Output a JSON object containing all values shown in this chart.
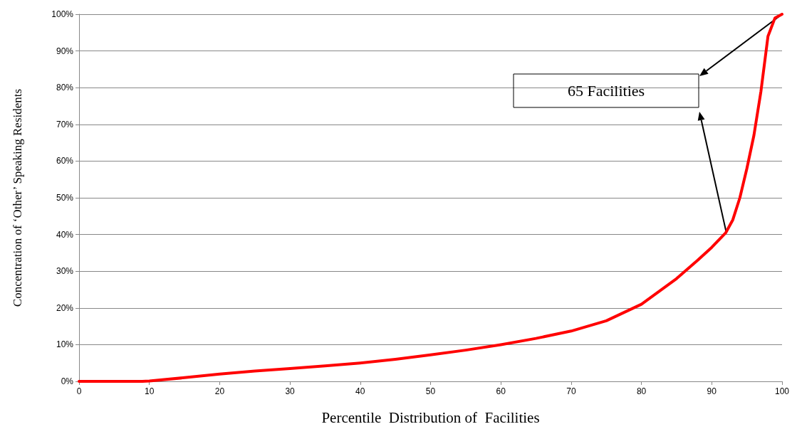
{
  "chart_data": {
    "type": "line",
    "xlabel": "Percentile  Distribution of  Facilities",
    "ylabel": "Concentration of ‘Other’ Speaking Residents",
    "x": [
      0,
      5,
      9,
      10,
      15,
      20,
      25,
      30,
      35,
      40,
      45,
      50,
      55,
      60,
      65,
      70,
      75,
      80,
      85,
      88,
      90,
      92,
      93,
      94,
      95,
      96,
      97,
      98,
      99,
      100
    ],
    "series": [
      {
        "color": "#ff0000",
        "values": [
          0,
          0,
          0,
          0.1,
          1,
          2,
          2.8,
          3.5,
          4.2,
          5,
          6,
          7.2,
          8.5,
          10,
          11.7,
          13.7,
          16.5,
          21,
          28,
          33,
          36.5,
          40.5,
          44,
          50,
          58,
          67,
          79,
          94,
          99,
          100
        ]
      }
    ],
    "xlim": [
      0,
      100
    ],
    "xticks": [
      0,
      10,
      20,
      30,
      40,
      50,
      60,
      70,
      80,
      90,
      100
    ],
    "ylim": [
      0,
      100
    ],
    "yticks": [
      {
        "value": 0,
        "label": "0%"
      },
      {
        "value": 10,
        "label": "10%"
      },
      {
        "value": 20,
        "label": "20%"
      },
      {
        "value": 30,
        "label": "30%"
      },
      {
        "value": 40,
        "label": "40%"
      },
      {
        "value": 50,
        "label": "50%"
      },
      {
        "value": 60,
        "label": "60%"
      },
      {
        "value": 70,
        "label": "70%"
      },
      {
        "value": 80,
        "label": "80%"
      },
      {
        "value": 90,
        "label": "90%"
      },
      {
        "value": 100,
        "label": "100%"
      }
    ],
    "grid": "y",
    "marker": "none",
    "line_style": "solid",
    "annotations": [
      "65 Facilities"
    ]
  }
}
